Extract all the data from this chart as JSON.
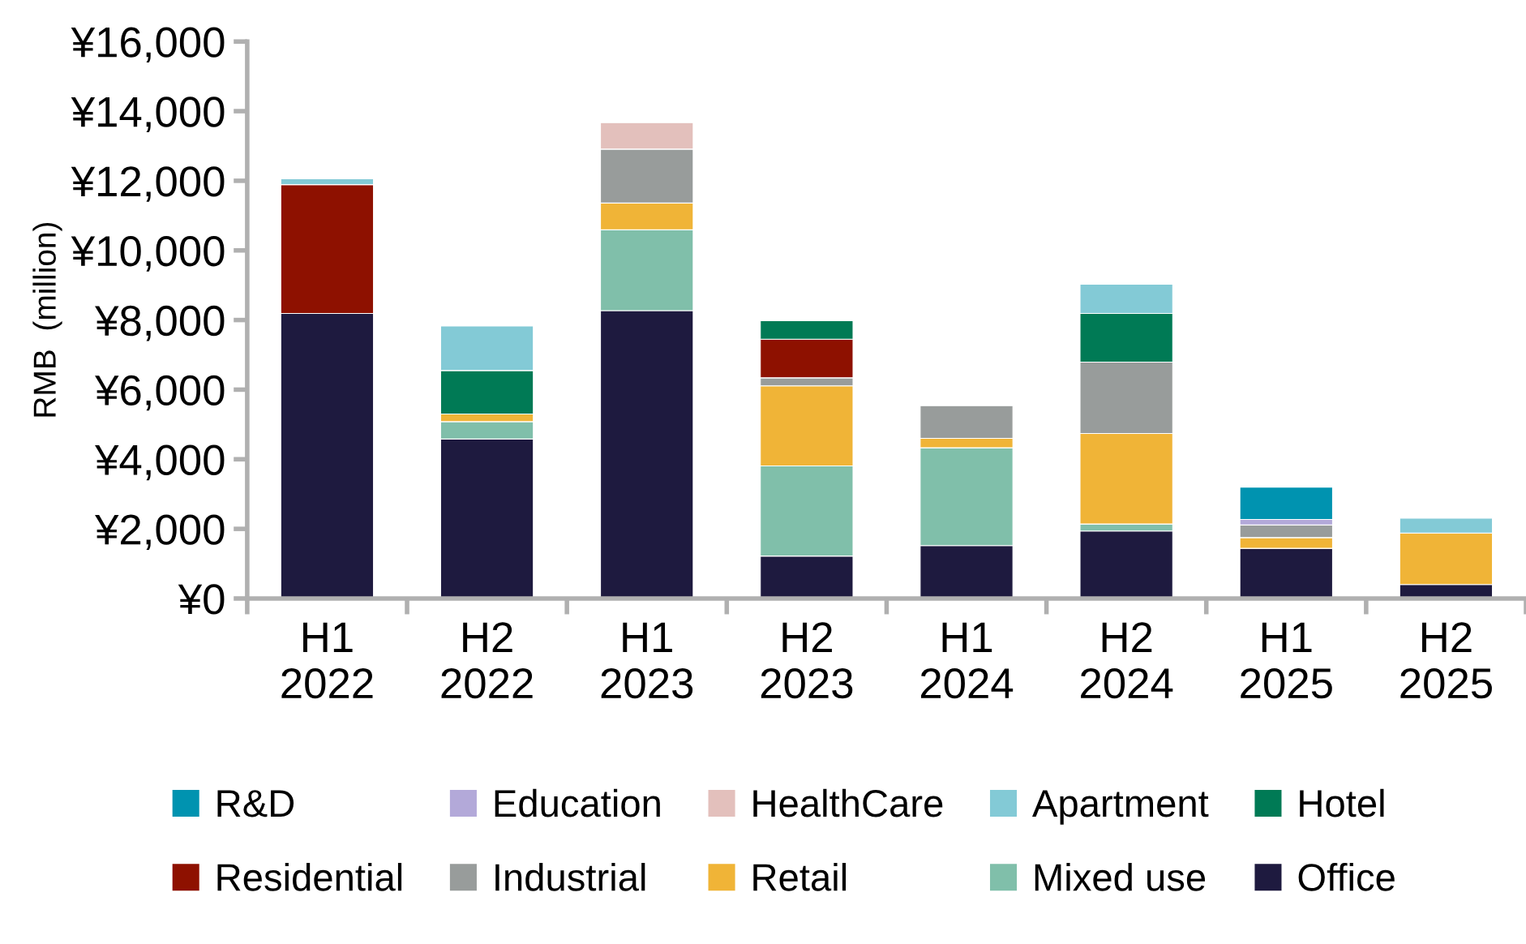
{
  "chart_data": {
    "type": "bar",
    "stacked": true,
    "ylabel": "RMB  (million)",
    "categories": [
      "H1\n2022",
      "H2\n2022",
      "H1\n2023",
      "H2\n2023",
      "H1\n2024",
      "H2\n2024",
      "H1\n2025",
      "H2\n2025"
    ],
    "series": [
      {
        "name": "Office",
        "color": "#1e1a3f",
        "values": [
          8190,
          4580,
          8270,
          1220,
          1520,
          1940,
          1440,
          400
        ]
      },
      {
        "name": "Mixed use",
        "color": "#80bfaa",
        "values": [
          null,
          500,
          2320,
          2590,
          2810,
          200,
          null,
          null
        ]
      },
      {
        "name": "Retail",
        "color": "#f0b437",
        "values": [
          null,
          220,
          770,
          2300,
          270,
          2600,
          310,
          1480
        ]
      },
      {
        "name": "Industrial",
        "color": "#989c9b",
        "values": [
          null,
          null,
          1550,
          230,
          940,
          2050,
          360,
          null
        ]
      },
      {
        "name": "Residential",
        "color": "#8e1100",
        "values": [
          3700,
          null,
          null,
          1110,
          null,
          null,
          null,
          null
        ]
      },
      {
        "name": "Hotel",
        "color": "#007a55",
        "values": [
          null,
          1250,
          null,
          530,
          null,
          1400,
          null,
          null
        ]
      },
      {
        "name": "Apartment",
        "color": "#83cad6",
        "values": [
          170,
          1280,
          null,
          null,
          null,
          840,
          null,
          430
        ]
      },
      {
        "name": "HealthCare",
        "color": "#e3c0bc",
        "values": [
          null,
          null,
          760,
          null,
          null,
          null,
          null,
          null
        ]
      },
      {
        "name": "Education",
        "color": "#b3a9d9",
        "values": [
          null,
          null,
          null,
          null,
          null,
          null,
          160,
          null
        ]
      },
      {
        "name": "R&D",
        "color": "#0093b0",
        "values": [
          null,
          null,
          null,
          null,
          null,
          null,
          930,
          null
        ]
      }
    ],
    "ylim": [
      0,
      16000
    ],
    "yticks": [
      {
        "value": 0,
        "label": "¥0"
      },
      {
        "value": 2000,
        "label": "¥2,000"
      },
      {
        "value": 4000,
        "label": "¥4,000"
      },
      {
        "value": 6000,
        "label": "¥6,000"
      },
      {
        "value": 8000,
        "label": "¥8,000"
      },
      {
        "value": 10000,
        "label": "¥10,000"
      },
      {
        "value": 12000,
        "label": "¥12,000"
      },
      {
        "value": 14000,
        "label": "¥14,000"
      },
      {
        "value": 16000,
        "label": "¥16,000"
      }
    ],
    "grid": false,
    "legend": "bottom"
  }
}
